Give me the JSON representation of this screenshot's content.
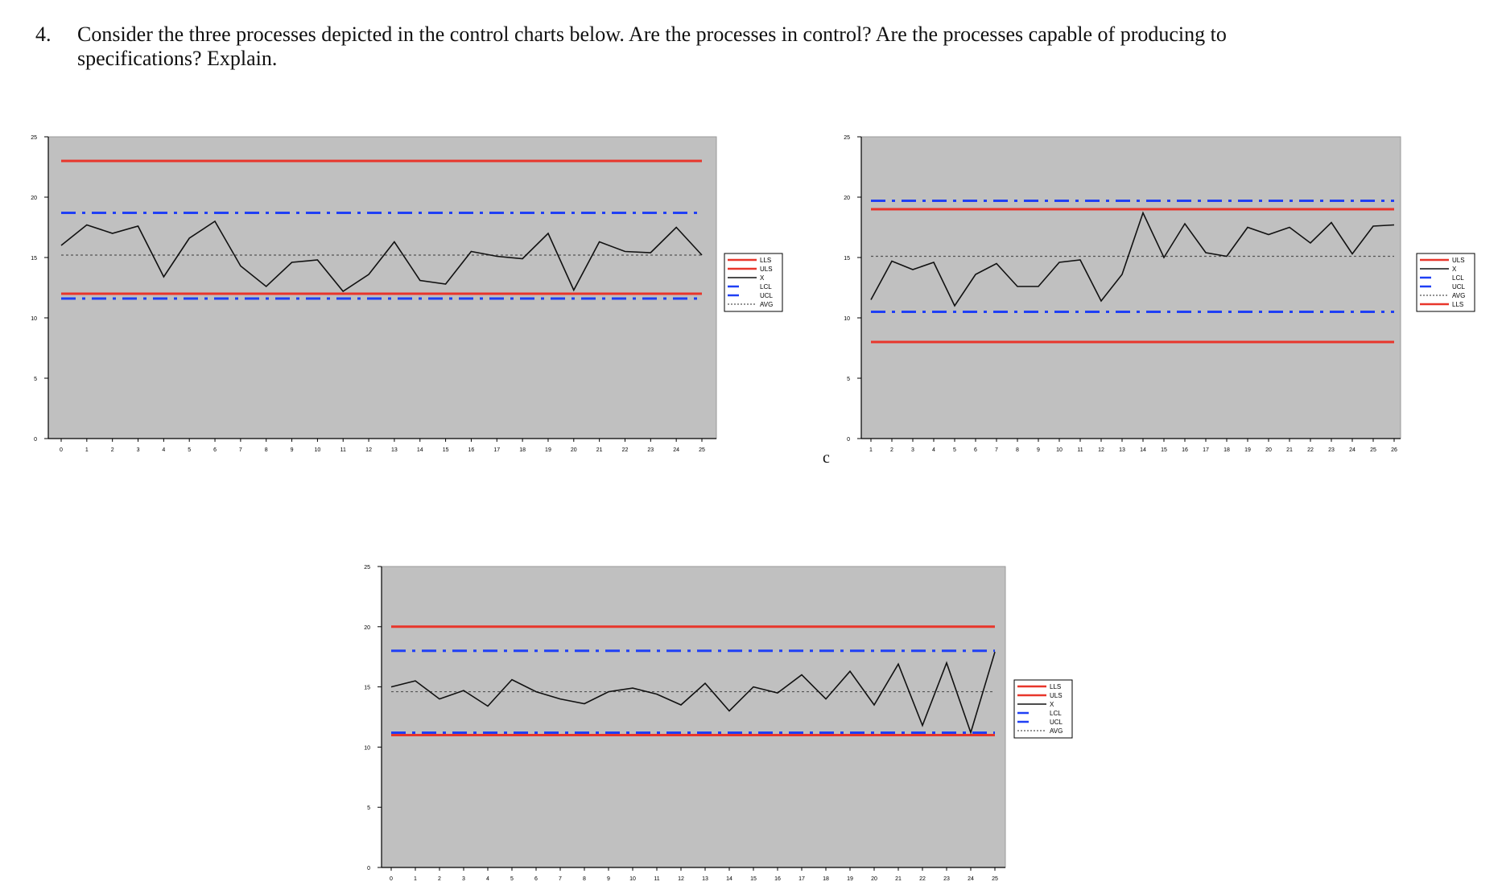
{
  "question": {
    "number": "4.",
    "text": "Consider the three processes depicted in the control charts below.  Are the processes in control? Are the processes capable of producing to specifications? Explain."
  },
  "panel_label": "c",
  "colors": {
    "plot_bg": "#c0c0c0",
    "spec": "#e8362b",
    "control": "#1f3ff5",
    "x": "#111111",
    "avg": "#555555"
  },
  "chart_data": [
    {
      "type": "line",
      "title": "",
      "xlabel": "",
      "ylabel": "",
      "ylim": [
        0,
        25
      ],
      "yticks": [
        0,
        5,
        10,
        15,
        20,
        25
      ],
      "xlim": [
        0,
        25
      ],
      "xticks": [
        "0",
        "1",
        "2",
        "3",
        "4",
        "5",
        "6",
        "7",
        "8",
        "9",
        "10",
        "11",
        "12",
        "13",
        "14",
        "15",
        "16",
        "17",
        "18",
        "19",
        "20",
        "21",
        "22",
        "23",
        "24",
        "25"
      ],
      "grid": false,
      "legend": "right",
      "legend_order": [
        "LLS",
        "ULS",
        "X",
        "LCL",
        "UCL",
        "AVG"
      ],
      "series": [
        {
          "name": "X",
          "x": [
            0,
            1,
            2,
            3,
            4,
            5,
            6,
            7,
            8,
            9,
            10,
            11,
            12,
            13,
            14,
            15,
            16,
            17,
            18,
            19,
            20,
            21,
            22,
            23,
            24,
            25
          ],
          "values": [
            16.0,
            17.7,
            17.0,
            17.6,
            13.4,
            16.6,
            18.0,
            14.3,
            12.6,
            14.6,
            14.8,
            12.2,
            13.6,
            16.3,
            13.1,
            12.8,
            15.5,
            15.1,
            14.9,
            17.0,
            12.3,
            16.3,
            15.5,
            15.4,
            17.5,
            15.2
          ]
        },
        {
          "name": "ULS",
          "constant": 23.0
        },
        {
          "name": "LLS",
          "constant": 12.0
        },
        {
          "name": "UCL",
          "constant": 18.7
        },
        {
          "name": "LCL",
          "constant": 11.6
        },
        {
          "name": "AVG",
          "constant": 15.2
        }
      ]
    },
    {
      "type": "line",
      "title": "",
      "xlabel": "",
      "ylabel": "",
      "ylim": [
        0,
        25
      ],
      "yticks": [
        0,
        5,
        10,
        15,
        20,
        25
      ],
      "xlim": [
        1,
        26
      ],
      "xticks": [
        "1",
        "2",
        "3",
        "4",
        "5",
        "6",
        "7",
        "8",
        "9",
        "10",
        "11",
        "12",
        "13",
        "14",
        "15",
        "16",
        "17",
        "18",
        "19",
        "20",
        "21",
        "22",
        "23",
        "24",
        "25",
        "26"
      ],
      "grid": false,
      "legend": "right",
      "legend_order": [
        "ULS",
        "X",
        "LCL",
        "UCL",
        "AVG",
        "LLS"
      ],
      "series": [
        {
          "name": "X",
          "x": [
            1,
            2,
            3,
            4,
            5,
            6,
            7,
            8,
            9,
            10,
            11,
            12,
            13,
            14,
            15,
            16,
            17,
            18,
            19,
            20,
            21,
            22,
            23,
            24,
            25,
            26
          ],
          "values": [
            11.5,
            14.7,
            14.0,
            14.6,
            11.0,
            13.6,
            14.5,
            12.6,
            12.6,
            14.6,
            14.8,
            11.4,
            13.6,
            18.7,
            15.0,
            17.8,
            15.4,
            15.1,
            17.5,
            16.9,
            17.5,
            16.2,
            17.9,
            15.3,
            17.6,
            17.7
          ]
        },
        {
          "name": "ULS",
          "constant": 19.0
        },
        {
          "name": "LLS",
          "constant": 8.0
        },
        {
          "name": "UCL",
          "constant": 19.7
        },
        {
          "name": "LCL",
          "constant": 10.5
        },
        {
          "name": "AVG",
          "constant": 15.1
        }
      ]
    },
    {
      "type": "line",
      "title": "",
      "xlabel": "",
      "ylabel": "",
      "ylim": [
        0,
        25
      ],
      "yticks": [
        0,
        5,
        10,
        15,
        20,
        25
      ],
      "xlim": [
        0,
        25
      ],
      "xticks": [
        "0",
        "1",
        "2",
        "3",
        "4",
        "5",
        "6",
        "7",
        "8",
        "9",
        "10",
        "11",
        "12",
        "13",
        "14",
        "15",
        "16",
        "17",
        "18",
        "19",
        "20",
        "21",
        "22",
        "23",
        "24",
        "25"
      ],
      "grid": false,
      "legend": "right",
      "legend_order": [
        "LLS",
        "ULS",
        "X",
        "LCL",
        "UCL",
        "AVG"
      ],
      "series": [
        {
          "name": "X",
          "x": [
            0,
            1,
            2,
            3,
            4,
            5,
            6,
            7,
            8,
            9,
            10,
            11,
            12,
            13,
            14,
            15,
            16,
            17,
            18,
            19,
            20,
            21,
            22,
            23,
            24,
            25
          ],
          "values": [
            15.0,
            15.5,
            14.0,
            14.7,
            13.4,
            15.6,
            14.6,
            14.0,
            13.6,
            14.6,
            14.9,
            14.4,
            13.5,
            15.3,
            13.0,
            15.0,
            14.5,
            16.0,
            14.0,
            16.3,
            13.5,
            16.9,
            11.8,
            17.0,
            11.2,
            17.9
          ]
        },
        {
          "name": "ULS",
          "constant": 20.0
        },
        {
          "name": "LLS",
          "constant": 11.0
        },
        {
          "name": "UCL",
          "constant": 18.0
        },
        {
          "name": "LCL",
          "constant": 11.2
        },
        {
          "name": "AVG",
          "constant": 14.6
        }
      ]
    }
  ]
}
